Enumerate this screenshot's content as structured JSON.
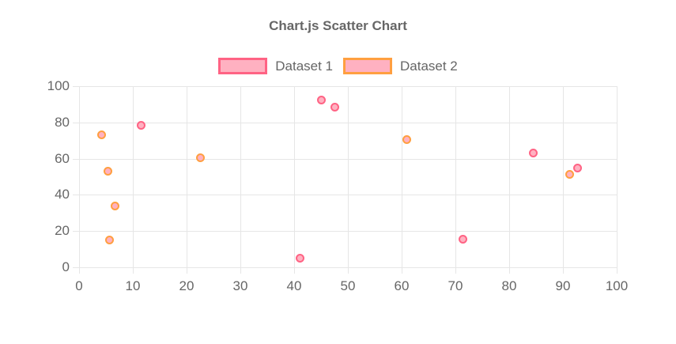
{
  "chart_data": {
    "type": "scatter",
    "title": "Chart.js Scatter Chart",
    "legend_position": "top",
    "grid": true,
    "xlabel": "",
    "ylabel": "",
    "xlim": [
      0,
      100
    ],
    "ylim": [
      0,
      100
    ],
    "x_ticks": [
      0,
      10,
      20,
      30,
      40,
      50,
      60,
      70,
      80,
      90,
      100
    ],
    "y_ticks": [
      0,
      20,
      40,
      60,
      80,
      100
    ],
    "series": [
      {
        "name": "Dataset 1",
        "border_color": "#FF6384",
        "fill_color": "#FFB1C1",
        "points": [
          [
            11.6,
            78.3
          ],
          [
            41.1,
            5.0
          ],
          [
            45.0,
            92.3
          ],
          [
            47.5,
            88.5
          ],
          [
            71.4,
            15.5
          ],
          [
            84.5,
            63.1
          ],
          [
            92.7,
            54.6
          ]
        ]
      },
      {
        "name": "Dataset 2",
        "border_color": "#FF9F40",
        "fill_color": "#FFB1C1",
        "points": [
          [
            4.2,
            73.3
          ],
          [
            5.3,
            53.1
          ],
          [
            5.6,
            15.2
          ],
          [
            6.7,
            33.9
          ],
          [
            22.6,
            60.6
          ],
          [
            60.9,
            70.7
          ],
          [
            91.2,
            51.1
          ]
        ]
      }
    ],
    "colors": {
      "text": "#666666",
      "grid": "#e6e6e6",
      "background": "#ffffff"
    }
  }
}
